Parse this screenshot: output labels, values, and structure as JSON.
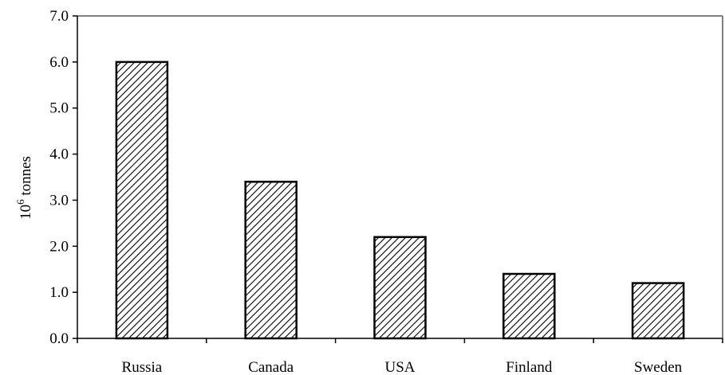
{
  "chart_data": {
    "type": "bar",
    "title": "",
    "xlabel": "",
    "ylabel": "10",
    "ylabel_superscript": "6",
    "ylabel_rest": " tonnes",
    "categories": [
      "Russia",
      "Canada",
      "USA",
      "Finland",
      "Sweden"
    ],
    "values": [
      6.0,
      3.4,
      2.2,
      1.4,
      1.2
    ],
    "ylim": [
      0,
      7
    ],
    "yticks": [
      "0.0",
      "1.0",
      "2.0",
      "3.0",
      "4.0",
      "5.0",
      "6.0",
      "7.0"
    ],
    "grid": false,
    "legend": "none",
    "bar_fill": "diagonal-hatch",
    "colors": {
      "bar_stroke": "#000000",
      "hatch": "#000000",
      "background": "#ffffff",
      "frame": "#808080"
    }
  }
}
